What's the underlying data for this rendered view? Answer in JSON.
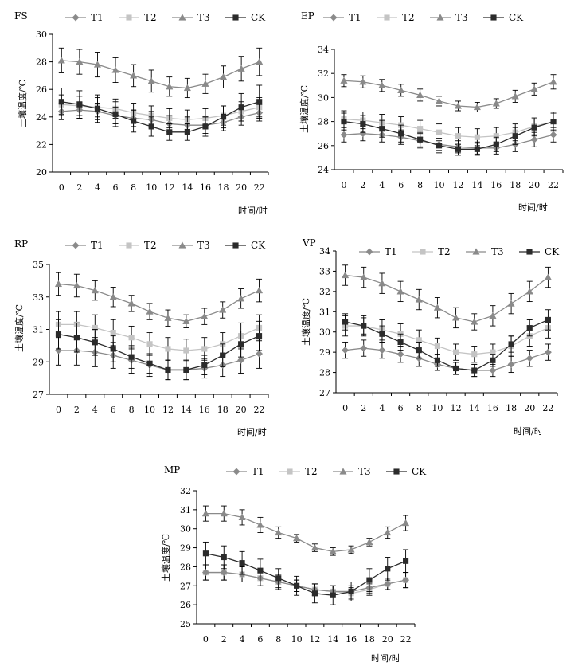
{
  "chart_data": [
    {
      "type": "line",
      "panel": "FS",
      "xlabel": "时间/时",
      "ylabel": "土壤温度/℃",
      "x": [
        0,
        2,
        4,
        6,
        8,
        10,
        12,
        14,
        16,
        18,
        20,
        22
      ],
      "ylim": [
        20,
        30
      ],
      "yticks": [
        20,
        22,
        24,
        26,
        28,
        30
      ],
      "series": [
        {
          "name": "T1",
          "values": [
            24.4,
            24.5,
            24.4,
            24.1,
            23.9,
            23.8,
            23.5,
            23.4,
            23.4,
            23.6,
            24.0,
            24.3
          ],
          "err": [
            0.6,
            0.6,
            0.6,
            0.6,
            0.6,
            0.6,
            0.6,
            0.6,
            0.6,
            0.6,
            0.6,
            0.6
          ]
        },
        {
          "name": "T2",
          "values": [
            24.9,
            24.8,
            24.7,
            24.6,
            24.3,
            24.1,
            23.9,
            23.8,
            23.9,
            24.1,
            24.4,
            24.7
          ],
          "err": [
            0.7,
            0.7,
            0.7,
            0.7,
            0.7,
            0.7,
            0.7,
            0.7,
            0.7,
            0.7,
            0.7,
            0.7
          ]
        },
        {
          "name": "T3",
          "values": [
            28.1,
            28.0,
            27.8,
            27.4,
            27.0,
            26.6,
            26.2,
            26.1,
            26.4,
            26.9,
            27.5,
            28.0
          ],
          "err": [
            0.9,
            0.9,
            0.9,
            0.9,
            0.8,
            0.8,
            0.7,
            0.7,
            0.7,
            0.8,
            0.9,
            1.0
          ]
        },
        {
          "name": "CK",
          "values": [
            25.1,
            24.9,
            24.6,
            24.2,
            23.7,
            23.3,
            22.9,
            22.9,
            23.3,
            24.0,
            24.7,
            25.1
          ],
          "err": [
            1.0,
            1.0,
            1.0,
            0.9,
            0.8,
            0.7,
            0.6,
            0.6,
            0.7,
            0.8,
            1.0,
            1.2
          ]
        }
      ]
    },
    {
      "type": "line",
      "panel": "EP",
      "xlabel": "时间/时",
      "ylabel": "土壤温度/℃",
      "x": [
        0,
        2,
        4,
        6,
        8,
        10,
        12,
        14,
        16,
        18,
        20,
        22
      ],
      "ylim": [
        24,
        34
      ],
      "yticks": [
        24,
        26,
        28,
        30,
        32,
        34
      ],
      "series": [
        {
          "name": "T1",
          "values": [
            26.9,
            27.0,
            26.9,
            26.7,
            26.4,
            26.1,
            25.9,
            25.8,
            25.8,
            26.1,
            26.5,
            26.9
          ],
          "err": [
            0.6,
            0.6,
            0.6,
            0.6,
            0.6,
            0.5,
            0.5,
            0.5,
            0.5,
            0.6,
            0.6,
            0.6
          ]
        },
        {
          "name": "T2",
          "values": [
            28.2,
            28.1,
            27.9,
            27.7,
            27.4,
            27.1,
            26.8,
            26.7,
            26.8,
            27.1,
            27.6,
            28.0
          ],
          "err": [
            0.7,
            0.7,
            0.7,
            0.7,
            0.7,
            0.7,
            0.7,
            0.7,
            0.7,
            0.7,
            0.7,
            0.7
          ]
        },
        {
          "name": "T3",
          "values": [
            31.4,
            31.3,
            31.0,
            30.6,
            30.2,
            29.7,
            29.3,
            29.2,
            29.5,
            30.1,
            30.7,
            31.3
          ],
          "err": [
            0.5,
            0.5,
            0.5,
            0.5,
            0.5,
            0.4,
            0.4,
            0.4,
            0.4,
            0.5,
            0.5,
            0.6
          ]
        },
        {
          "name": "CK",
          "values": [
            28.0,
            27.8,
            27.4,
            27.0,
            26.5,
            26.0,
            25.7,
            25.7,
            26.1,
            26.8,
            27.5,
            28.0
          ],
          "err": [
            0.7,
            0.7,
            0.7,
            0.7,
            0.6,
            0.6,
            0.5,
            0.5,
            0.6,
            0.7,
            0.7,
            0.8
          ]
        }
      ]
    },
    {
      "type": "line",
      "panel": "RP",
      "xlabel": "时间/时",
      "ylabel": "土壤温度/℃",
      "x": [
        0,
        2,
        4,
        6,
        8,
        10,
        12,
        14,
        16,
        18,
        20,
        22
      ],
      "ylim": [
        27,
        35
      ],
      "yticks": [
        27,
        29,
        31,
        33,
        35
      ],
      "series": [
        {
          "name": "T1",
          "values": [
            29.7,
            29.7,
            29.6,
            29.4,
            29.1,
            28.8,
            28.5,
            28.5,
            28.6,
            28.8,
            29.1,
            29.5
          ],
          "err": [
            0.9,
            0.9,
            0.9,
            0.8,
            0.8,
            0.7,
            0.6,
            0.6,
            0.6,
            0.7,
            0.8,
            0.9
          ]
        },
        {
          "name": "T2",
          "values": [
            31.3,
            31.3,
            31.1,
            30.8,
            30.5,
            30.1,
            29.8,
            29.7,
            29.8,
            30.1,
            30.6,
            31.1
          ],
          "err": [
            0.8,
            0.8,
            0.8,
            0.8,
            0.7,
            0.7,
            0.7,
            0.7,
            0.7,
            0.7,
            0.8,
            0.8
          ]
        },
        {
          "name": "T3",
          "values": [
            33.8,
            33.7,
            33.4,
            33.0,
            32.6,
            32.1,
            31.7,
            31.5,
            31.8,
            32.2,
            32.9,
            33.4
          ],
          "err": [
            0.7,
            0.7,
            0.6,
            0.6,
            0.5,
            0.5,
            0.5,
            0.4,
            0.5,
            0.5,
            0.6,
            0.7
          ]
        },
        {
          "name": "CK",
          "values": [
            30.7,
            30.5,
            30.2,
            29.8,
            29.3,
            28.9,
            28.5,
            28.5,
            28.8,
            29.4,
            30.1,
            30.6
          ],
          "err": [
            0.9,
            0.9,
            0.8,
            0.8,
            0.7,
            0.6,
            0.6,
            0.6,
            0.6,
            0.7,
            0.8,
            0.9
          ]
        }
      ]
    },
    {
      "type": "line",
      "panel": "VP",
      "xlabel": "时间/时",
      "ylabel": "土壤温度/℃",
      "x": [
        0,
        2,
        4,
        6,
        8,
        10,
        12,
        14,
        16,
        18,
        20,
        22
      ],
      "ylim": [
        27,
        34
      ],
      "yticks": [
        27,
        28,
        29,
        30,
        31,
        32,
        33,
        34
      ],
      "series": [
        {
          "name": "T1",
          "values": [
            29.1,
            29.2,
            29.1,
            28.9,
            28.7,
            28.4,
            28.2,
            28.1,
            28.1,
            28.4,
            28.7,
            29.0
          ],
          "err": [
            0.4,
            0.4,
            0.4,
            0.4,
            0.4,
            0.3,
            0.3,
            0.3,
            0.3,
            0.4,
            0.4,
            0.4
          ]
        },
        {
          "name": "T2",
          "values": [
            30.3,
            30.3,
            30.1,
            29.9,
            29.6,
            29.3,
            29.0,
            28.9,
            29.0,
            29.3,
            29.8,
            30.2
          ],
          "err": [
            0.5,
            0.5,
            0.5,
            0.5,
            0.5,
            0.4,
            0.4,
            0.4,
            0.4,
            0.5,
            0.5,
            0.5
          ]
        },
        {
          "name": "T3",
          "values": [
            32.8,
            32.7,
            32.4,
            32.0,
            31.6,
            31.2,
            30.7,
            30.5,
            30.8,
            31.4,
            32.0,
            32.7
          ],
          "err": [
            0.5,
            0.5,
            0.5,
            0.5,
            0.5,
            0.5,
            0.5,
            0.4,
            0.5,
            0.5,
            0.5,
            0.5
          ]
        },
        {
          "name": "CK",
          "values": [
            30.5,
            30.3,
            29.9,
            29.5,
            29.1,
            28.6,
            28.2,
            28.1,
            28.6,
            29.4,
            30.2,
            30.6
          ],
          "err": [
            0.4,
            0.4,
            0.4,
            0.4,
            0.4,
            0.3,
            0.3,
            0.3,
            0.3,
            0.4,
            0.4,
            0.5
          ]
        }
      ]
    },
    {
      "type": "line",
      "panel": "MP",
      "xlabel": "时间/时",
      "ylabel": "土壤温度/℃",
      "x": [
        0,
        2,
        4,
        6,
        8,
        10,
        12,
        14,
        16,
        18,
        20,
        22
      ],
      "ylim": [
        25,
        32
      ],
      "yticks": [
        25,
        26,
        27,
        28,
        29,
        30,
        31,
        32
      ],
      "series": [
        {
          "name": "T1",
          "values": [
            27.7,
            27.7,
            27.6,
            27.4,
            27.2,
            27.0,
            26.8,
            26.7,
            26.7,
            26.9,
            27.1,
            27.3
          ],
          "err": [
            0.4,
            0.4,
            0.4,
            0.4,
            0.4,
            0.3,
            0.3,
            0.3,
            0.3,
            0.3,
            0.3,
            0.4
          ]
        },
        {
          "name": "T2",
          "values": [
            27.7,
            27.7,
            27.6,
            27.4,
            27.2,
            27.0,
            26.8,
            26.7,
            26.6,
            26.8,
            27.1,
            27.3
          ],
          "err": [
            0.4,
            0.4,
            0.4,
            0.4,
            0.4,
            0.3,
            0.3,
            0.3,
            0.3,
            0.3,
            0.3,
            0.4
          ]
        },
        {
          "name": "T3",
          "values": [
            30.8,
            30.8,
            30.6,
            30.2,
            29.8,
            29.5,
            29.0,
            28.8,
            28.9,
            29.3,
            29.8,
            30.3
          ],
          "err": [
            0.4,
            0.4,
            0.4,
            0.4,
            0.3,
            0.2,
            0.2,
            0.2,
            0.2,
            0.2,
            0.3,
            0.4
          ]
        },
        {
          "name": "CK",
          "values": [
            28.7,
            28.5,
            28.2,
            27.8,
            27.4,
            27.0,
            26.6,
            26.5,
            26.7,
            27.3,
            27.9,
            28.3
          ],
          "err": [
            0.6,
            0.6,
            0.6,
            0.6,
            0.5,
            0.5,
            0.5,
            0.5,
            0.5,
            0.6,
            0.6,
            0.6
          ]
        }
      ]
    }
  ],
  "styles": {
    "T1": {
      "color": "#8a8a8a",
      "marker": "diamond"
    },
    "T2": {
      "color": "#c4c4c4",
      "marker": "square"
    },
    "T3": {
      "color": "#8a8a8a",
      "marker": "triangle"
    },
    "CK": {
      "color": "#2b2b2b",
      "marker": "square"
    },
    "axis_color": "#000000"
  }
}
